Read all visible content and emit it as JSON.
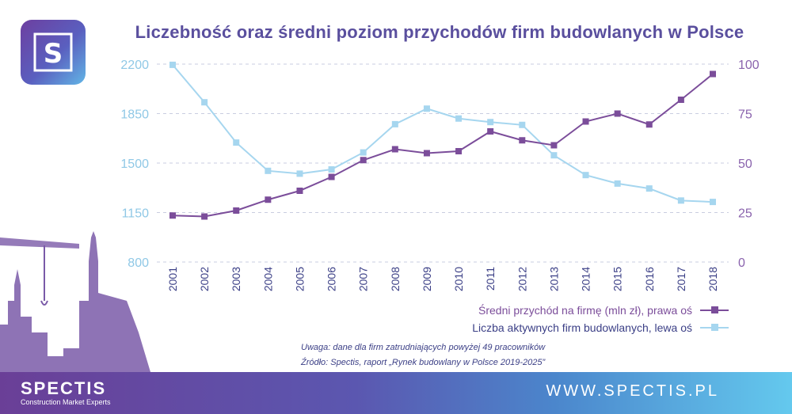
{
  "brand": {
    "name": "SPECTIS",
    "tagline": "Construction Market Experts",
    "url": "WWW.SPECTIS.PL",
    "logo_letter": "S"
  },
  "footnote": {
    "note": "Uwaga: dane dla firm zatrudniających powyżej 49 pracowników",
    "source": "Źródło: Spectis, raport „Rynek budowlany w Polsce 2019-2025”"
  },
  "colors": {
    "revenue": "#7b4d9a",
    "firms": "#a6d6ef",
    "title": "#5a4f9e",
    "axis_left": "#8fc8e6",
    "axis_right": "#8a63ad"
  },
  "chart_data": {
    "type": "line",
    "title": "Liczebność oraz średni poziom przychodów firm budowlanych w Polsce",
    "categories": [
      "2001",
      "2002",
      "2003",
      "2004",
      "2005",
      "2006",
      "2007",
      "2008",
      "2009",
      "2010",
      "2011",
      "2012",
      "2013",
      "2014",
      "2015",
      "2016",
      "2017",
      "2018"
    ],
    "y_left": {
      "ticks": [
        800,
        1150,
        1500,
        1850,
        2200
      ],
      "range": [
        800,
        2200
      ]
    },
    "y_right": {
      "ticks": [
        0,
        25,
        50,
        75,
        100
      ],
      "range": [
        0,
        100
      ]
    },
    "series": [
      {
        "name": "Średni przychód na firmę (mln zł), prawa oś",
        "axis": "right",
        "marker": "square",
        "values": [
          23.5,
          23,
          26,
          31.5,
          36,
          43,
          51.5,
          57,
          55,
          56,
          66,
          61.5,
          59,
          71,
          75,
          69.5,
          82,
          95
        ]
      },
      {
        "name": "Liczba aktywnych firm budowlanych, lewa oś",
        "axis": "left",
        "marker": "square",
        "values": [
          2195,
          1930,
          1645,
          1445,
          1425,
          1455,
          1575,
          1775,
          1885,
          1815,
          1790,
          1770,
          1555,
          1415,
          1355,
          1320,
          1235,
          1225
        ]
      }
    ],
    "grid": "horizontal dashed",
    "legend": "bottom-right"
  }
}
